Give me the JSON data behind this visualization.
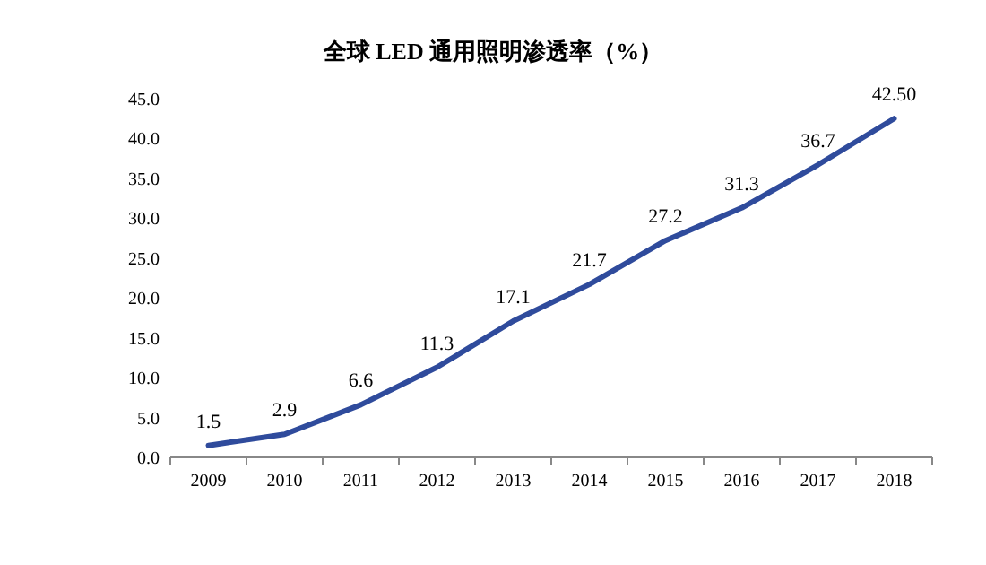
{
  "chart_data": {
    "type": "line",
    "title": "全球 LED 通用照明渗透率（%）",
    "categories": [
      "2009",
      "2010",
      "2011",
      "2012",
      "2013",
      "2014",
      "2015",
      "2016",
      "2017",
      "2018"
    ],
    "series": [
      {
        "color": "#2f4b9c",
        "values": [
          1.5,
          2.9,
          6.6,
          11.3,
          17.1,
          21.7,
          27.2,
          31.3,
          36.7,
          42.5
        ],
        "value_labels": [
          "1.5",
          "2.9",
          "6.6",
          "11.3",
          "17.1",
          "21.7",
          "27.2",
          "31.3",
          "36.7",
          "42.50"
        ]
      }
    ],
    "ylim": [
      0,
      45
    ],
    "yticks": [
      {
        "value": 0,
        "label": "0.0"
      },
      {
        "value": 5,
        "label": "5.0"
      },
      {
        "value": 10,
        "label": "10.0"
      },
      {
        "value": 15,
        "label": "15.0"
      },
      {
        "value": 20,
        "label": "20.0"
      },
      {
        "value": 25,
        "label": "25.0"
      },
      {
        "value": 30,
        "label": "30.0"
      },
      {
        "value": 35,
        "label": "35.0"
      },
      {
        "value": 40,
        "label": "40.0"
      },
      {
        "value": 45,
        "label": "45.0"
      }
    ],
    "grid": false,
    "marker": "none",
    "line_style": "solid"
  }
}
